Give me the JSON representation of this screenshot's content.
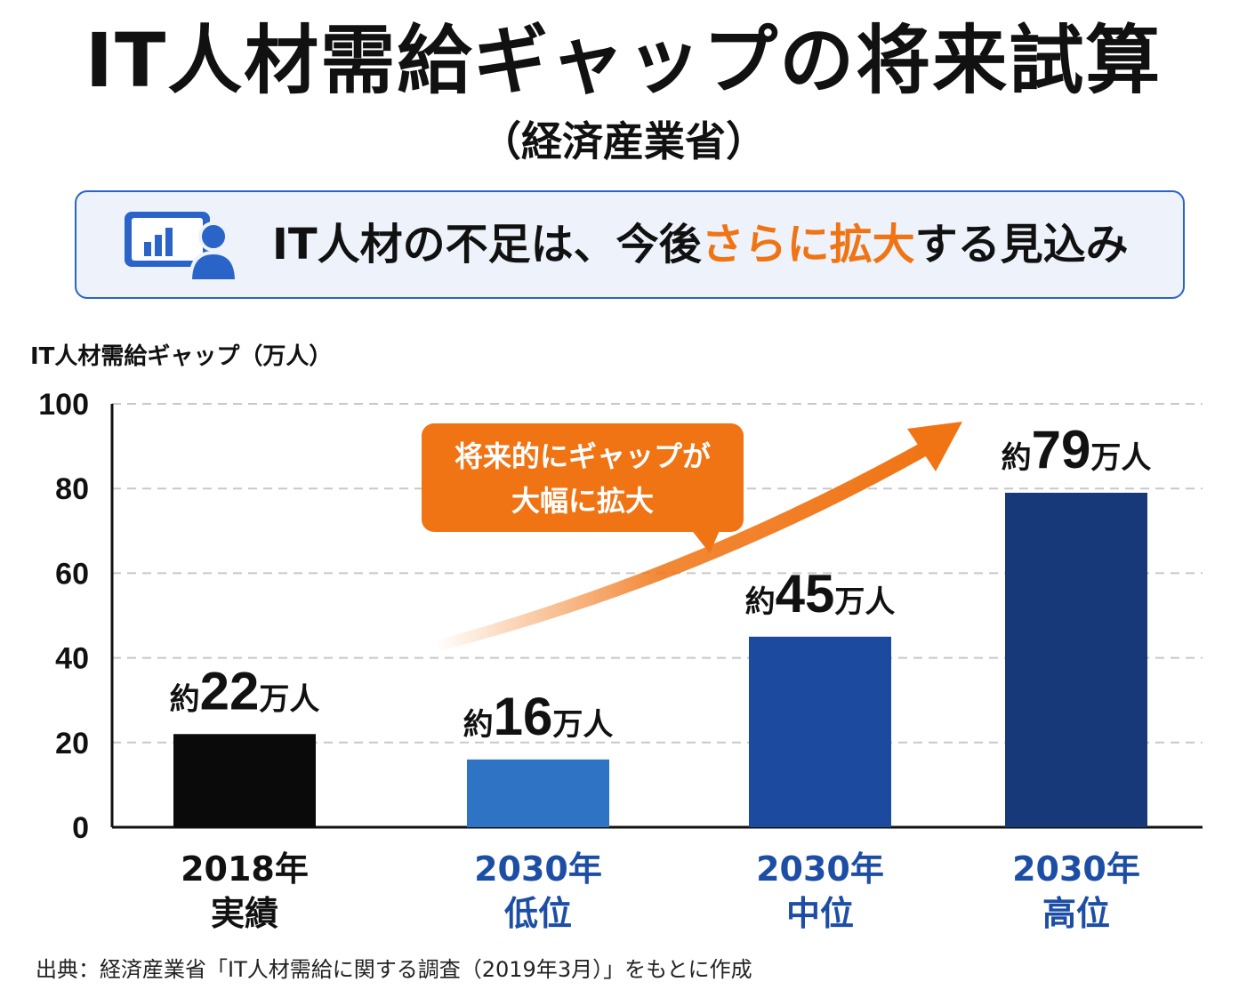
{
  "header": {
    "title": "IT人材需給ギャップの将来試算",
    "subtitle": "（経済産業省）"
  },
  "banner": {
    "icon": "presentation-person-icon",
    "text_before": "IT人材の不足は、今後",
    "text_highlight": "さらに拡大",
    "text_after": "する見込み"
  },
  "callout": {
    "line1": "将来的にギャップが",
    "line2": "大幅に拡大"
  },
  "source": "出典：経済産業省「IT人材需給に関する調査（2019年3月）」をもとに作成",
  "colors": {
    "accent": "#f07414",
    "bar_2018": "#0a0a0a",
    "bar_low": "#2f74c4",
    "bar_mid": "#1c4a9e",
    "bar_high": "#17397a",
    "label_blue": "#1d4ea5"
  },
  "chart_data": {
    "type": "bar",
    "ylabel": "IT人材需給ギャップ（万人）",
    "ylim": [
      0,
      100
    ],
    "yticks": [
      0,
      20,
      40,
      60,
      80,
      100
    ],
    "grid": true,
    "categories": [
      {
        "line1": "2018年",
        "line2": "実績"
      },
      {
        "line1": "2030年",
        "line2": "低位"
      },
      {
        "line1": "2030年",
        "line2": "中位"
      },
      {
        "line1": "2030年",
        "line2": "高位"
      }
    ],
    "values": [
      22,
      16,
      45,
      79
    ],
    "data_labels": [
      {
        "prefix": "約",
        "number": "22",
        "suffix": "万人"
      },
      {
        "prefix": "約",
        "number": "16",
        "suffix": "万人"
      },
      {
        "prefix": "約",
        "number": "45",
        "suffix": "万人"
      },
      {
        "prefix": "約",
        "number": "79",
        "suffix": "万人"
      }
    ],
    "bar_colors": [
      "#0a0a0a",
      "#2f74c4",
      "#1c4a9e",
      "#17397a"
    ],
    "label_colors": [
      "#111111",
      "#1d4ea5",
      "#1d4ea5",
      "#1d4ea5"
    ]
  }
}
